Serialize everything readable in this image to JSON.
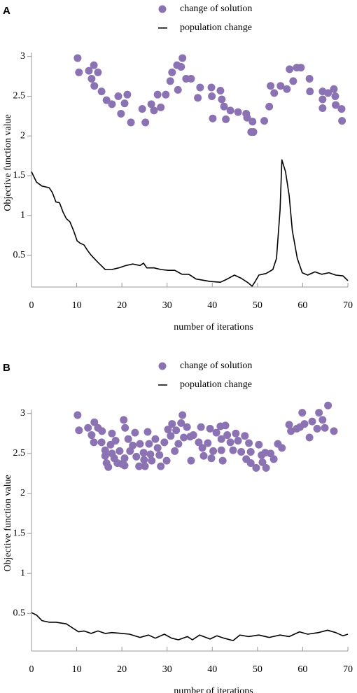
{
  "chart_data": [
    {
      "type": "scatter",
      "panel": "A",
      "ylabel": "Objective function value",
      "xlabel": "number of iterations",
      "xlim": [
        0,
        70
      ],
      "xticks": [
        0,
        10,
        20,
        30,
        40,
        50,
        60,
        70
      ],
      "ylim": [
        0.1,
        3.05
      ],
      "yticks": [
        0.5,
        1,
        1.5,
        2,
        2.5,
        3
      ],
      "grid": false,
      "series": [
        {
          "name": "change of solution",
          "type": "scatter",
          "color": "#8b73b3",
          "x": [
            10.2,
            10.5,
            12.7,
            13.8,
            13.3,
            13.9,
            14.7,
            15.5,
            16.6,
            17.8,
            19.2,
            19.8,
            20.6,
            21.2,
            22.0,
            24.5,
            25.2,
            26.5,
            27.1,
            27.9,
            28.6,
            29.7,
            30.7,
            31.1,
            32.2,
            32.4,
            33.1,
            33.4,
            34.2,
            35.3,
            37.3,
            36.8,
            39.8,
            39.9,
            40.1,
            41.8,
            42.1,
            42.6,
            43.0,
            44.0,
            45.7,
            47.5,
            47.7,
            48.6,
            48.9,
            49.1,
            51.5,
            52.6,
            52.9,
            53.7,
            55.1,
            56.5,
            57.1,
            57.9,
            58.7,
            59.6,
            61.5,
            61.6,
            64.4,
            64.4,
            64.4,
            65.6,
            66.9,
            67.2,
            67.3,
            68.6,
            68.7
          ],
          "values": [
            2.98,
            2.8,
            2.82,
            2.89,
            2.72,
            2.63,
            2.8,
            2.56,
            2.45,
            2.4,
            2.5,
            2.28,
            2.41,
            2.52,
            2.17,
            2.34,
            2.17,
            2.4,
            2.32,
            2.52,
            2.36,
            2.52,
            2.69,
            2.8,
            2.89,
            2.58,
            2.87,
            2.98,
            2.72,
            2.72,
            2.61,
            2.48,
            2.61,
            2.5,
            2.22,
            2.57,
            2.46,
            2.37,
            2.21,
            2.32,
            2.3,
            2.28,
            2.23,
            2.05,
            2.18,
            2.05,
            2.19,
            2.37,
            2.63,
            2.54,
            2.63,
            2.59,
            2.84,
            2.69,
            2.86,
            2.86,
            2.72,
            2.56,
            2.56,
            2.46,
            2.35,
            2.54,
            2.59,
            2.5,
            2.39,
            2.34,
            2.19
          ]
        },
        {
          "name": "population change",
          "type": "line",
          "color": "#000000",
          "x": [
            0,
            1.1,
            2.3,
            3.9,
            4.6,
            5.4,
            6.2,
            7.0,
            7.7,
            8.5,
            9.3,
            10.1,
            10.8,
            11.6,
            12.4,
            13.2,
            14.7,
            16.3,
            17.8,
            19.3,
            20.9,
            22.4,
            24.0,
            24.8,
            25.5,
            27.1,
            28.6,
            30.2,
            31.7,
            33.3,
            34.8,
            36.4,
            39.5,
            41.8,
            43.3,
            44.9,
            46.4,
            48.0,
            48.8,
            49.5,
            50.3,
            51.9,
            53.4,
            54.2,
            55.0,
            55.4,
            56.2,
            57.0,
            57.7,
            58.8,
            59.9,
            61.1,
            62.7,
            64.2,
            65.8,
            67.3,
            68.9,
            70.0
          ],
          "values": [
            1.55,
            1.42,
            1.37,
            1.35,
            1.29,
            1.17,
            1.16,
            1.04,
            0.96,
            0.92,
            0.81,
            0.68,
            0.65,
            0.63,
            0.56,
            0.5,
            0.41,
            0.32,
            0.32,
            0.34,
            0.37,
            0.39,
            0.37,
            0.4,
            0.34,
            0.34,
            0.32,
            0.31,
            0.31,
            0.26,
            0.26,
            0.2,
            0.17,
            0.16,
            0.2,
            0.25,
            0.21,
            0.15,
            0.11,
            0.17,
            0.25,
            0.27,
            0.32,
            0.46,
            1.07,
            1.7,
            1.55,
            1.25,
            0.81,
            0.46,
            0.28,
            0.25,
            0.29,
            0.26,
            0.28,
            0.25,
            0.24,
            0.18
          ]
        }
      ]
    },
    {
      "type": "scatter",
      "panel": "B",
      "ylabel": "Objective function value",
      "xlabel": "number of iterations",
      "xlim": [
        0,
        70
      ],
      "xticks": [
        0,
        10,
        20,
        30,
        40,
        50,
        60,
        70
      ],
      "ylim": [
        0.03,
        3.05
      ],
      "yticks": [
        0.5,
        1,
        1.5,
        2,
        2.5,
        3
      ],
      "grid": false,
      "series": [
        {
          "name": "change of solution",
          "type": "scatter",
          "color": "#8b73b3",
          "x": [
            10.2,
            10.5,
            12.5,
            13.9,
            13.3,
            13.8,
            14.7,
            15.6,
            15.5,
            16.3,
            16.3,
            16.6,
            17.0,
            17.5,
            17.8,
            17.8,
            18.3,
            18.6,
            19.0,
            19.5,
            20.0,
            20.4,
            20.7,
            20.6,
            20.6,
            21.4,
            21.8,
            22.4,
            22.9,
            23.2,
            23.8,
            24.0,
            24.8,
            24.9,
            25.1,
            25.7,
            26.0,
            26.3,
            26.6,
            27.4,
            27.9,
            28.3,
            28.6,
            29.4,
            29.9,
            30.2,
            30.8,
            31.1,
            31.7,
            32.0,
            32.5,
            33.1,
            33.4,
            33.7,
            34.4,
            35.1,
            35.3,
            35.8,
            37.0,
            37.5,
            37.8,
            38.1,
            39.0,
            39.5,
            39.8,
            40.2,
            40.9,
            41.8,
            42.0,
            42.0,
            42.3,
            42.9,
            43.3,
            44.0,
            44.6,
            45.2,
            45.7,
            46.4,
            47.2,
            47.5,
            48.1,
            48.5,
            48.5,
            49.7,
            50.3,
            50.9,
            51.1,
            51.7,
            51.9,
            52.9,
            53.6,
            54.5,
            55.4,
            57.0,
            57.4,
            58.7,
            59.4,
            59.9,
            60.4,
            61.5,
            62.1,
            63.2,
            63.6,
            64.4,
            64.9,
            65.6,
            66.9
          ],
          "values": [
            2.98,
            2.79,
            2.82,
            2.89,
            2.73,
            2.64,
            2.82,
            2.78,
            2.64,
            2.54,
            2.47,
            2.38,
            2.33,
            2.61,
            2.75,
            2.5,
            2.44,
            2.66,
            2.38,
            2.53,
            2.37,
            2.92,
            2.82,
            2.44,
            2.35,
            2.68,
            2.53,
            2.6,
            2.76,
            2.46,
            2.34,
            2.62,
            2.51,
            2.42,
            2.34,
            2.77,
            2.62,
            2.49,
            2.41,
            2.68,
            2.57,
            2.48,
            2.34,
            2.64,
            2.41,
            2.8,
            2.72,
            2.87,
            2.53,
            2.79,
            2.62,
            2.88,
            2.98,
            2.7,
            2.83,
            2.71,
            2.41,
            2.73,
            2.64,
            2.83,
            2.57,
            2.47,
            2.63,
            2.81,
            2.44,
            2.53,
            2.76,
            2.84,
            2.68,
            2.54,
            2.41,
            2.85,
            2.73,
            2.64,
            2.54,
            2.75,
            2.66,
            2.52,
            2.72,
            2.43,
            2.63,
            2.52,
            2.38,
            2.32,
            2.61,
            2.48,
            2.39,
            2.51,
            2.32,
            2.5,
            2.43,
            2.62,
            2.57,
            2.86,
            2.78,
            2.81,
            2.83,
            3.01,
            2.87,
            2.7,
            2.9,
            2.81,
            3.01,
            2.92,
            2.82,
            3.1,
            2.78
          ]
        },
        {
          "name": "population change",
          "type": "line",
          "color": "#000000",
          "x": [
            0,
            1.1,
            2.3,
            3.9,
            5.4,
            7.7,
            9.3,
            10.4,
            11.6,
            13.2,
            14.7,
            16.3,
            17.8,
            20.1,
            21.7,
            24.0,
            25.9,
            27.4,
            29.4,
            31.0,
            32.5,
            34.5,
            35.6,
            37.2,
            39.5,
            41.0,
            42.6,
            44.6,
            46.1,
            48.0,
            50.3,
            52.6,
            55.0,
            57.0,
            59.3,
            61.1,
            63.5,
            65.5,
            67.3,
            68.9,
            70.0
          ],
          "values": [
            0.51,
            0.48,
            0.41,
            0.39,
            0.39,
            0.37,
            0.31,
            0.27,
            0.28,
            0.25,
            0.28,
            0.25,
            0.26,
            0.25,
            0.24,
            0.2,
            0.23,
            0.19,
            0.24,
            0.19,
            0.17,
            0.21,
            0.17,
            0.23,
            0.18,
            0.22,
            0.19,
            0.16,
            0.23,
            0.21,
            0.23,
            0.2,
            0.23,
            0.21,
            0.27,
            0.24,
            0.26,
            0.29,
            0.26,
            0.22,
            0.24
          ]
        }
      ]
    }
  ]
}
